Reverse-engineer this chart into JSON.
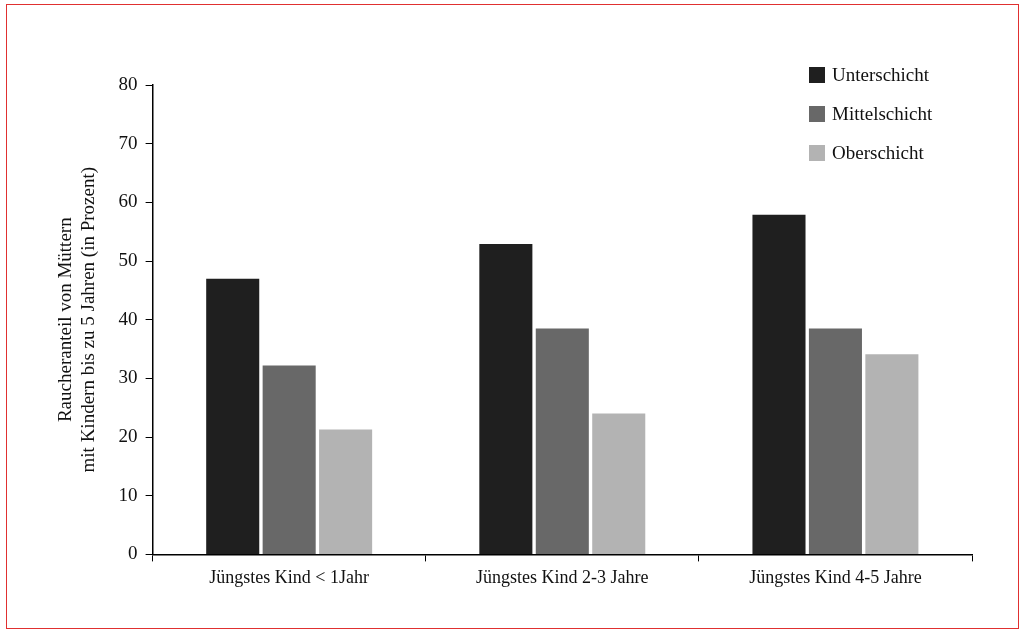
{
  "chart_data": {
    "type": "bar",
    "ylabel": "Raucheranteil von Müttern\nmit Kindern bis zu 5 Jahren (in Prozent)",
    "categories": [
      "Jüngstes Kind < 1Jahr",
      "Jüngstes Kind 2-3 Jahre",
      "Jüngstes Kind 4-5 Jahre"
    ],
    "series": [
      {
        "name": "Unterschicht",
        "color": "#1f1f1f",
        "values": [
          47,
          52.9,
          57.9
        ]
      },
      {
        "name": "Mittelschicht",
        "color": "#686868",
        "values": [
          32.2,
          38.5,
          38.5
        ]
      },
      {
        "name": "Oberschicht",
        "color": "#b3b3b3",
        "values": [
          21.3,
          24,
          34.1
        ]
      }
    ],
    "ylim": [
      0,
      80
    ],
    "yticks": [
      0,
      10,
      20,
      30,
      40,
      50,
      60,
      70,
      80
    ],
    "grid": false,
    "legend": "top right"
  }
}
